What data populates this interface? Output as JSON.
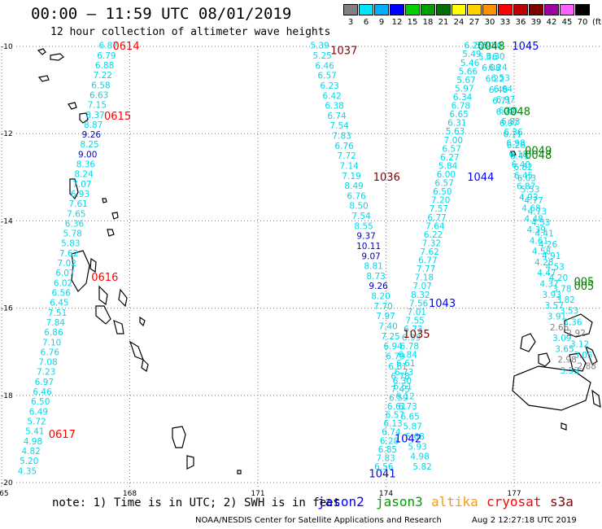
{
  "header": {
    "title": "00:00 – 11:59 UTC 08/01/2019",
    "subtitle": "12 hour collection of altimeter wave heights"
  },
  "scale": {
    "unit": "(ft)",
    "bins": [
      {
        "label": "3",
        "color": "#808080"
      },
      {
        "label": "6",
        "color": "#00e5ff"
      },
      {
        "label": "9",
        "color": "#00b0ff"
      },
      {
        "label": "12",
        "color": "#0000ff"
      },
      {
        "label": "15",
        "color": "#00d000"
      },
      {
        "label": "18",
        "color": "#00a000"
      },
      {
        "label": "21",
        "color": "#007000"
      },
      {
        "label": "24",
        "color": "#ffff00"
      },
      {
        "label": "27",
        "color": "#ffd000"
      },
      {
        "label": "30",
        "color": "#ff9000"
      },
      {
        "label": "33",
        "color": "#ff0000"
      },
      {
        "label": "36",
        "color": "#c00000"
      },
      {
        "label": "39",
        "color": "#800000"
      },
      {
        "label": "42",
        "color": "#a000a0"
      },
      {
        "label": "45",
        "color": "#ff60ff"
      },
      {
        "label": "70",
        "color": "#000000"
      }
    ]
  },
  "map": {
    "lon_range": [
      165,
      179
    ],
    "lat_range": [
      -20,
      -10
    ],
    "x_ticks": [
      "165",
      "168",
      "171",
      "174",
      "177"
    ],
    "y_ticks": [
      "-10",
      "-12",
      "-14",
      "-16",
      "-18",
      "-20"
    ],
    "tracks": [
      {
        "start": [
          167.5,
          -10.05
        ],
        "end": [
          165.6,
          -19.8
        ],
        "color": "#00d8e8",
        "values": [
          "6.87",
          "6.79",
          "6.88",
          "7.22",
          "6.58",
          "6.63",
          "7.15",
          "8.37",
          "8.87",
          "9.26",
          "8.25",
          "9.00",
          "8.36",
          "8.24",
          "7.07",
          "6.93",
          "7.61",
          "7.65",
          "6.36",
          "5.78",
          "5.83",
          "7.62",
          "7.02",
          "6.07",
          "6.02",
          "6.56",
          "6.45",
          "7.51",
          "7.84",
          "6.86",
          "7.10",
          "6.76",
          "7.08",
          "7.23",
          "6.97",
          "6.46",
          "6.50",
          "6.49",
          "5.72",
          "5.41",
          "4.98",
          "4.82",
          "5.20",
          "4.35"
        ]
      },
      {
        "start": [
          172.45,
          -10.05
        ],
        "end": [
          174.85,
          -19.7
        ],
        "color": "#00d8e8",
        "values": [
          "5.39",
          "5.25",
          "6.46",
          "6.57",
          "6.23",
          "6.42",
          "6.38",
          "6.74",
          "7.54",
          "7.83",
          "6.76",
          "7.72",
          "7.14",
          "7.19",
          "8.49",
          "6.76",
          "8.50",
          "7.54",
          "8.55",
          "9.37",
          "10.11",
          "9.07",
          "8.81",
          "8.73",
          "9.26",
          "8.20",
          "7.70",
          "7.97",
          "7.40",
          "7.25",
          "6.94",
          "6.79",
          "6.61",
          "6.78",
          "6.51",
          "6.12",
          "6.73",
          "6.65",
          "5.87",
          "5.68",
          "5.93",
          "4.98",
          "5.82"
        ]
      },
      {
        "start": [
          176.05,
          -10.05
        ],
        "end": [
          173.95,
          -19.7
        ],
        "color": "#00d8e8",
        "values": [
          "6.25",
          "5.49",
          "5.46",
          "5.66",
          "5.67",
          "5.97",
          "6.34",
          "6.78",
          "6.65",
          "6.31",
          "5.63",
          "7.00",
          "6.57",
          "6.27",
          "5.84",
          "6.00",
          "6.57",
          "6.50",
          "7.20",
          "7.57",
          "6.77",
          "7.64",
          "6.22",
          "7.32",
          "7.62",
          "6.77",
          "7.77",
          "7.18",
          "7.07",
          "8.32",
          "7.56",
          "7.01",
          "7.55",
          "6.73",
          "6.99",
          "6.78",
          "6.84",
          "6.61",
          "6.73",
          "6.30",
          "7.45",
          "6.59",
          "6.61",
          "6.57",
          "6.13",
          "6.74",
          "6.28",
          "6.85",
          "7.83",
          "6.56"
        ]
      },
      {
        "start": [
          176.5,
          -10.05
        ],
        "end": [
          178.3,
          -17.5
        ],
        "color": "#00d8e8",
        "values": [
          "5.30",
          "5.30",
          "6.24",
          "6.53",
          "6.64",
          "6.97",
          "6.68",
          "6.83",
          "6.36",
          "6.98",
          "6.18",
          "6.40",
          "6.45",
          "6.87",
          "4.93",
          "4.68",
          "4.48",
          "4.39",
          "4.61",
          "4.58",
          "4.28",
          "4.47",
          "4.37",
          "3.93",
          "3.57",
          "3.91",
          "2.66",
          "3.09",
          "3.65",
          "2.98",
          "3.53"
        ]
      },
      {
        "start": [
          176.3,
          -10.05
        ],
        "end": [
          178.7,
          -17.4
        ],
        "color": "#00d8e8",
        "values": [
          "5.30",
          "5.46",
          "6.08",
          "6.22",
          "6.48",
          "6.71",
          "6.72",
          "6.97",
          "6.11",
          "6.28",
          "6.45",
          "6.82",
          "6.03",
          "5.53",
          "4.77",
          "4.73",
          "4.53",
          "4.41",
          "4.26",
          "4.91",
          "4.53",
          "4.20",
          "3.78",
          "3.82",
          "3.53",
          "3.36",
          "2.92",
          "3.12",
          "3.05",
          "2.88"
        ]
      }
    ],
    "labels": [
      {
        "text": "0614",
        "lon": 167.6,
        "lat": -10.0,
        "color": "#ff0000"
      },
      {
        "text": "0615",
        "lon": 167.4,
        "lat": -11.6,
        "color": "#ff0000"
      },
      {
        "text": "0616",
        "lon": 167.1,
        "lat": -15.3,
        "color": "#ff0000"
      },
      {
        "text": "0617",
        "lon": 166.1,
        "lat": -18.9,
        "color": "#ff0000"
      },
      {
        "text": "1037",
        "lon": 172.7,
        "lat": -10.1,
        "color": "#800000"
      },
      {
        "text": "1036",
        "lon": 173.7,
        "lat": -13.0,
        "color": "#800000"
      },
      {
        "text": "1035",
        "lon": 174.4,
        "lat": -16.6,
        "color": "#800000"
      },
      {
        "text": "1045",
        "lon": 176.95,
        "lat": -10.0,
        "color": "#0000ff"
      },
      {
        "text": "1044",
        "lon": 175.9,
        "lat": -13.0,
        "color": "#0000ff"
      },
      {
        "text": "1043",
        "lon": 175.0,
        "lat": -15.9,
        "color": "#0000ff"
      },
      {
        "text": "1042",
        "lon": 174.2,
        "lat": -19.0,
        "color": "#0000ff"
      },
      {
        "text": "1041",
        "lon": 173.6,
        "lat": -19.8,
        "color": "#0000ff"
      },
      {
        "text": "0048",
        "lon": 176.15,
        "lat": -10.0,
        "color": "#008000"
      },
      {
        "text": "0048",
        "lon": 176.75,
        "lat": -11.5,
        "color": "#008000"
      },
      {
        "text": "0049",
        "lon": 177.25,
        "lat": -12.4,
        "color": "#008000"
      },
      {
        "text": "0048",
        "lon": 177.25,
        "lat": -12.5,
        "color": "#008000"
      },
      {
        "text": "005",
        "lon": 178.4,
        "lat": -15.4,
        "color": "#008000"
      },
      {
        "text": "005",
        "lon": 178.4,
        "lat": -15.5,
        "color": "#008000"
      }
    ]
  },
  "notes": {
    "note": "note: 1) Time is in UTC; 2) SWH is in feet",
    "legend": [
      {
        "text": "jason2",
        "color": "#0000ff"
      },
      {
        "text": "jason3",
        "color": "#00a000"
      },
      {
        "text": "altika",
        "color": "#ff9900"
      },
      {
        "text": "cryosat",
        "color": "#ff0000"
      },
      {
        "text": "s3a",
        "color": "#800000"
      }
    ]
  },
  "footer": {
    "credit": "NOAA/NESDIS Center for Satellite Applications and Research",
    "date": "Aug  2 12:27:18 UTC 2019"
  }
}
